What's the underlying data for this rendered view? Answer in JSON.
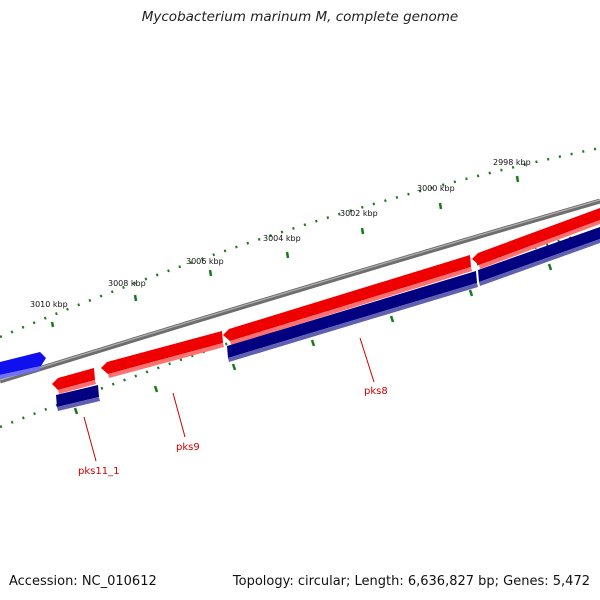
{
  "title": "Mycobacterium marinum M, complete genome",
  "footer": {
    "accession": "Accession: NC_010612",
    "summary": "Topology: circular; Length: 6,636,827 bp; Genes: 5,472"
  },
  "colors": {
    "backbone": "#808080",
    "forward_cds": "#ee0000",
    "reverse_cds": "#1010ee",
    "gene": "#000080",
    "tick": "#1a7a1a",
    "label_red": "#cc0000"
  },
  "scale_labels": [
    "2998 kbp",
    "3000 kbp",
    "3002 kbp",
    "3004 kbp",
    "3006 kbp",
    "3008 kbp",
    "3010 kbp"
  ],
  "gene_labels": [
    "pks8",
    "pks9",
    "pks11_1"
  ]
}
